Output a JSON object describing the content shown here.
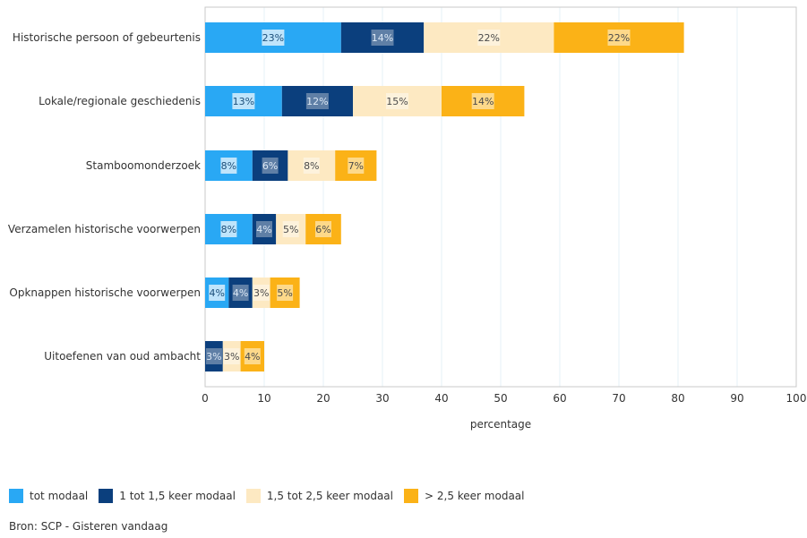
{
  "chart_data": {
    "type": "bar",
    "orientation": "horizontal",
    "stacked": true,
    "categories": [
      "Historische persoon of gebeurtenis",
      "Lokale/regionale geschiedenis",
      "Stamboomonderzoek",
      "Verzamelen historische voorwerpen",
      "Opknappen historische voorwerpen",
      "Uitoefenen van oud ambacht"
    ],
    "series": [
      {
        "name": "tot modaal",
        "color": "#29a8f4",
        "values": [
          23,
          13,
          8,
          8,
          4,
          0
        ],
        "labels": [
          "23%",
          "13%",
          "8%",
          "8%",
          "4%",
          ""
        ]
      },
      {
        "name": "1 tot 1,5 keer modaal",
        "color": "#0b3f7d",
        "values": [
          14,
          12,
          6,
          4,
          4,
          3
        ],
        "labels": [
          "14%",
          "12%",
          "6%",
          "4%",
          "4%",
          "3%"
        ]
      },
      {
        "name": "1,5 tot 2,5 keer modaal",
        "color": "#fde9c2",
        "values": [
          22,
          15,
          8,
          5,
          3,
          3
        ],
        "labels": [
          "22%",
          "15%",
          "8%",
          "5%",
          "3%",
          "3%"
        ]
      },
      {
        "name": "> 2,5 keer modaal",
        "color": "#fbb217",
        "values": [
          22,
          14,
          7,
          6,
          5,
          4
        ],
        "labels": [
          "22%",
          "14%",
          "7%",
          "6%",
          "5%",
          "4%"
        ]
      }
    ],
    "xlabel": "percentage",
    "ylabel": "",
    "xlim": [
      0,
      100
    ],
    "xticks": [
      0,
      10,
      20,
      30,
      40,
      50,
      60,
      70,
      80,
      90,
      100
    ],
    "grid": true,
    "legend_position": "bottom-left"
  },
  "source": "Bron: SCP - Gisteren vandaag"
}
